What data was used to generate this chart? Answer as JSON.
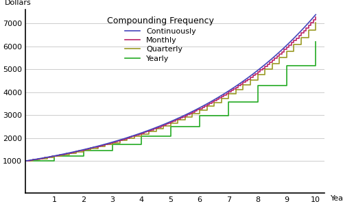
{
  "principal": 1000,
  "rate": 0.2,
  "years": 10,
  "n_points_continuous": 500,
  "legend_title": "Compounding Frequency",
  "xlabel": "Years",
  "ylabel": "Dollars",
  "xlim": [
    0,
    10.3
  ],
  "ylim": [
    -400,
    7600
  ],
  "yticks": [
    1000,
    2000,
    3000,
    4000,
    5000,
    6000,
    7000
  ],
  "xticks": [
    1,
    2,
    3,
    4,
    5,
    6,
    7,
    8,
    9,
    10
  ],
  "colors": {
    "continuous": "#4444bb",
    "monthly": "#bb2266",
    "quarterly": "#999922",
    "yearly": "#22aa22"
  },
  "legend_labels": [
    "Continuously",
    "Monthly",
    "Quarterly",
    "Yearly"
  ],
  "background_color": "#ffffff",
  "grid_color": "#cccccc",
  "line_width": 1.2
}
